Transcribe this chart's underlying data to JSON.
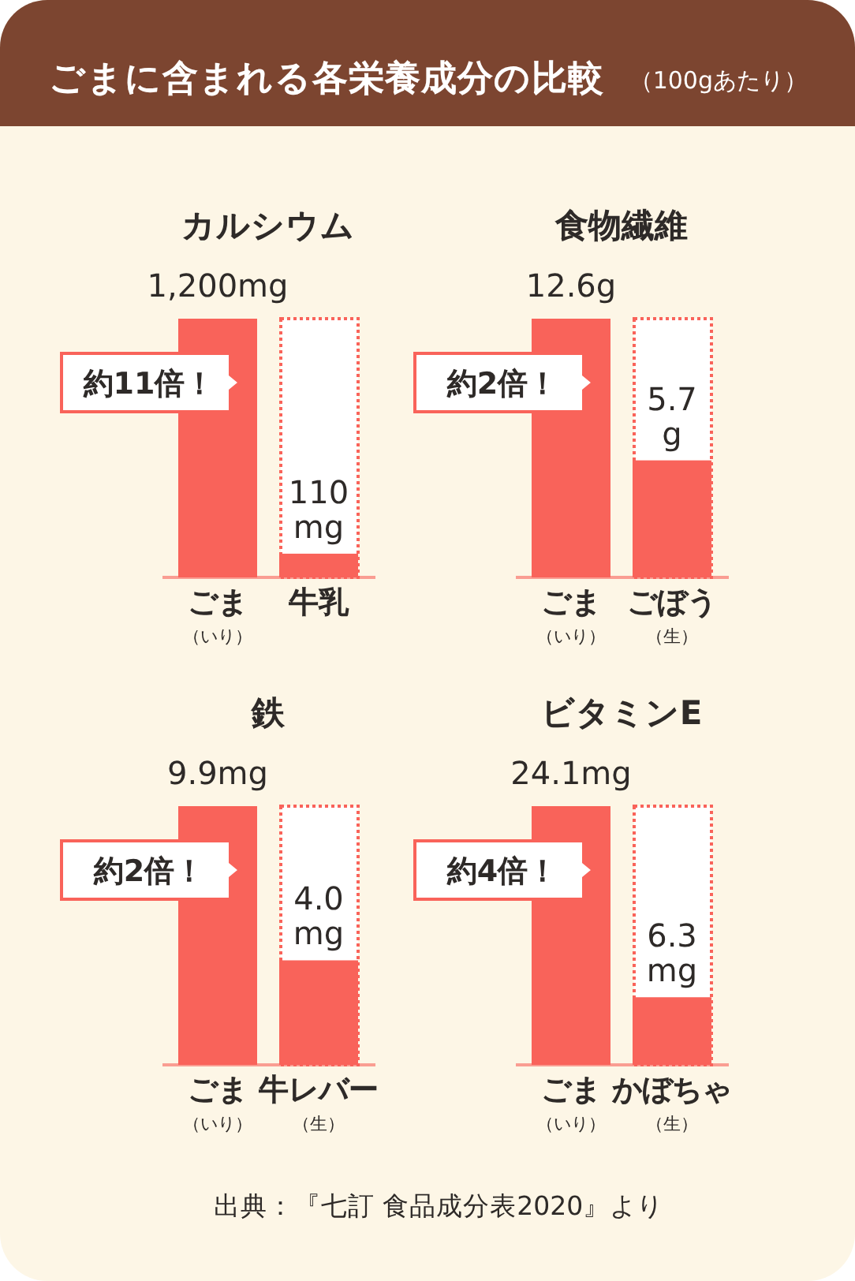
{
  "chart_data": [
    {
      "type": "other",
      "title": "ごまに含まれる各栄養成分の比較",
      "subtitle": "（100gあたり）",
      "annotations": [
        "出典：『七訂 食品成分表2020』より"
      ]
    },
    {
      "type": "bar",
      "title": "カルシウム",
      "categories": [
        "ごま（いり）",
        "牛乳"
      ],
      "values": [
        1200,
        110
      ],
      "color": "#f9635a",
      "value_labels": [
        "1,200mg",
        "110 mg"
      ],
      "annotations": [
        "約11倍！"
      ]
    },
    {
      "type": "bar",
      "title": "食物繊維",
      "categories": [
        "ごま（いり）",
        "ごぼう（生）"
      ],
      "values": [
        12.6,
        5.7
      ],
      "color": "#f9635a",
      "value_labels": [
        "12.6g",
        "5.7 g"
      ],
      "annotations": [
        "約2倍！"
      ]
    },
    {
      "type": "bar",
      "title": "鉄",
      "categories": [
        "ごま（いり）",
        "牛レバー（生）"
      ],
      "values": [
        9.9,
        4.0
      ],
      "color": "#f9635a",
      "value_labels": [
        "9.9mg",
        "4.0 mg"
      ],
      "annotations": [
        "約2倍！"
      ]
    },
    {
      "type": "bar",
      "title": "ビタミンE",
      "categories": [
        "ごま（いり）",
        "かぼちゃ（生）"
      ],
      "values": [
        24.1,
        6.3
      ],
      "color": "#f9635a",
      "value_labels": [
        "24.1mg",
        "6.3 mg"
      ],
      "annotations": [
        "約4倍！"
      ]
    }
  ]
}
